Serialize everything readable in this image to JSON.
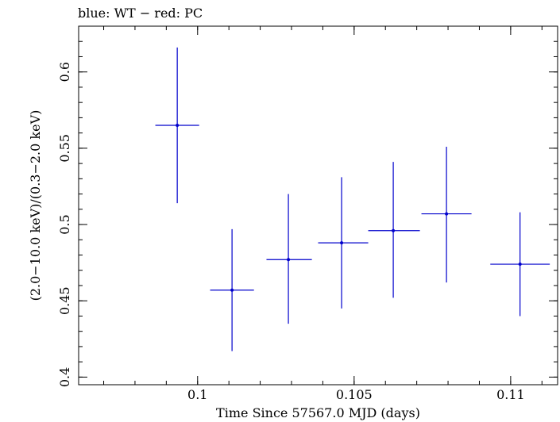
{
  "chart_data": {
    "type": "scatter",
    "title": "blue: WT − red: PC",
    "xlabel": "Time Since 57567.0 MJD (days)",
    "ylabel": "(2.0−10.0 keV)/(0.3−2.0 keV)",
    "xlim": [
      0.0962,
      0.1115
    ],
    "ylim": [
      0.395,
      0.63
    ],
    "x_ticks": [
      {
        "value": 0.1,
        "label": "0.1"
      },
      {
        "value": 0.105,
        "label": "0.105"
      },
      {
        "value": 0.11,
        "label": "0.11"
      }
    ],
    "y_ticks": [
      {
        "value": 0.4,
        "label": "0.4"
      },
      {
        "value": 0.45,
        "label": "0.45"
      },
      {
        "value": 0.5,
        "label": "0.5"
      },
      {
        "value": 0.55,
        "label": "0.55"
      },
      {
        "value": 0.6,
        "label": "0.6"
      }
    ],
    "grid": false,
    "series": [
      {
        "color": "#0000cc",
        "points": [
          {
            "x": 0.09935,
            "y": 0.565,
            "x_lo": 0.09865,
            "x_hi": 0.10005,
            "y_lo": 0.514,
            "y_hi": 0.616
          },
          {
            "x": 0.1011,
            "y": 0.457,
            "x_lo": 0.1004,
            "x_hi": 0.1018,
            "y_lo": 0.417,
            "y_hi": 0.497
          },
          {
            "x": 0.1029,
            "y": 0.477,
            "x_lo": 0.1022,
            "x_hi": 0.10365,
            "y_lo": 0.435,
            "y_hi": 0.52
          },
          {
            "x": 0.1046,
            "y": 0.488,
            "x_lo": 0.10385,
            "x_hi": 0.10545,
            "y_lo": 0.445,
            "y_hi": 0.531
          },
          {
            "x": 0.10625,
            "y": 0.496,
            "x_lo": 0.10545,
            "x_hi": 0.1071,
            "y_lo": 0.452,
            "y_hi": 0.541
          },
          {
            "x": 0.10795,
            "y": 0.507,
            "x_lo": 0.10715,
            "x_hi": 0.10875,
            "y_lo": 0.462,
            "y_hi": 0.551
          },
          {
            "x": 0.1103,
            "y": 0.474,
            "x_lo": 0.10935,
            "x_hi": 0.11125,
            "y_lo": 0.44,
            "y_hi": 0.508
          }
        ]
      }
    ]
  }
}
